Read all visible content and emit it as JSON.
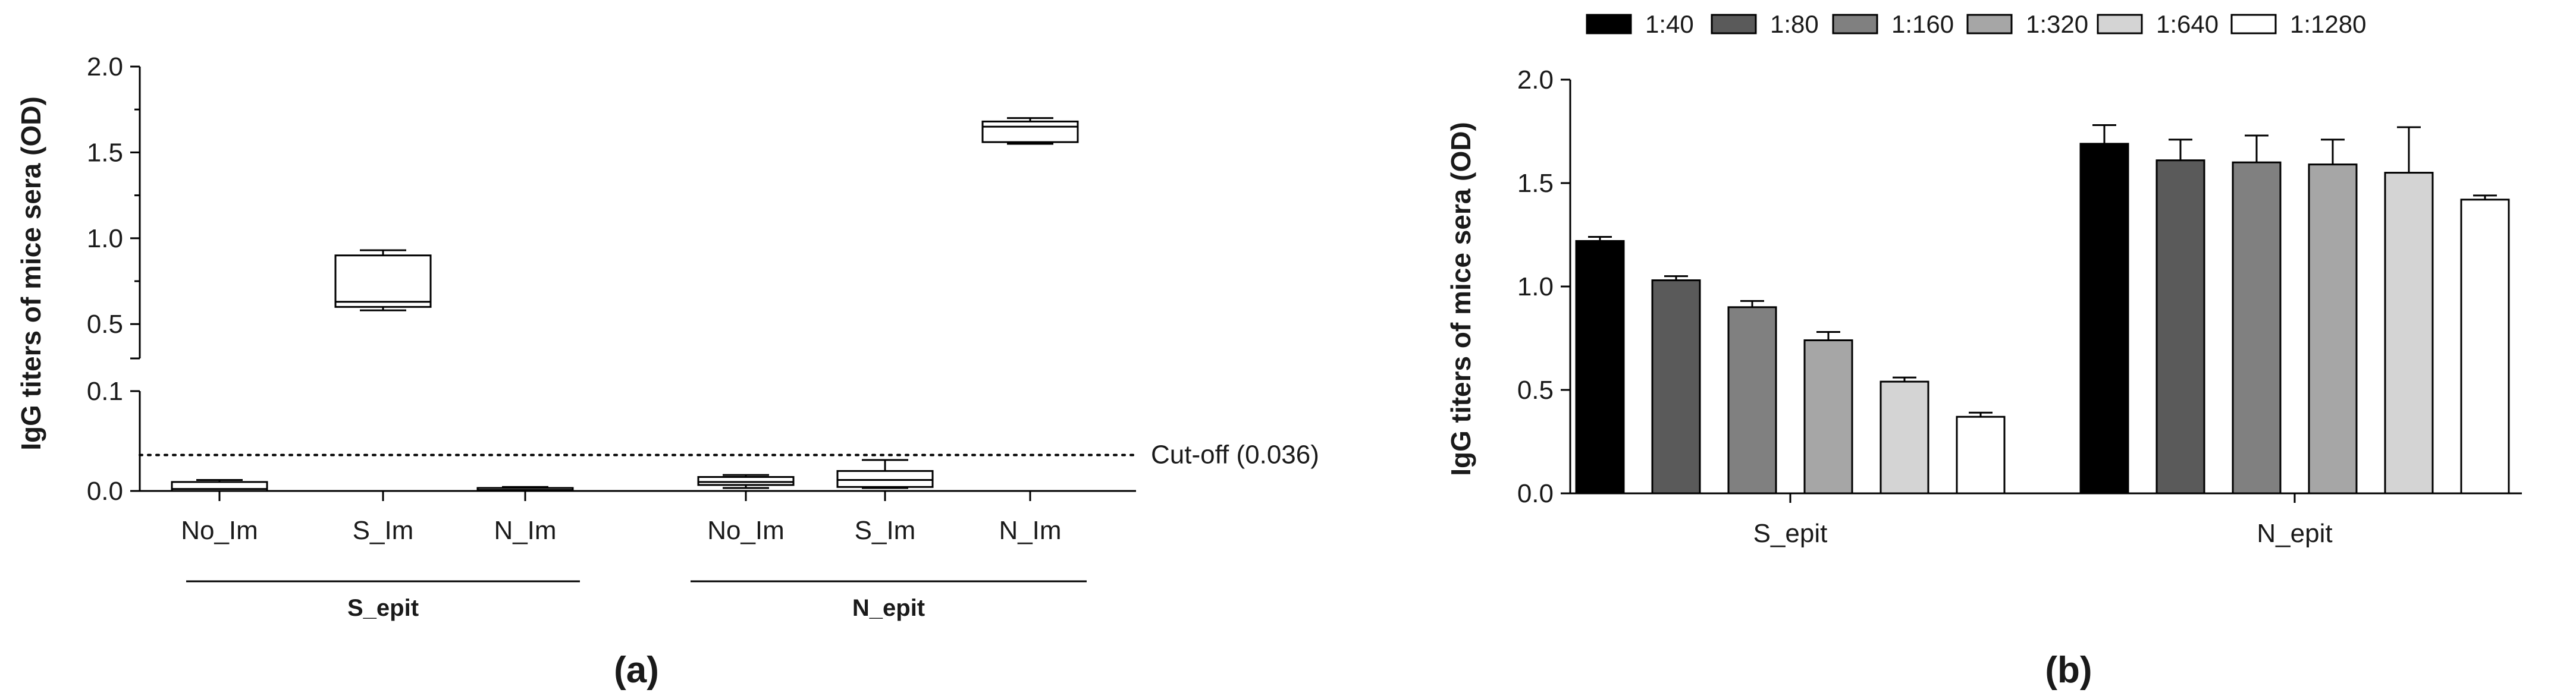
{
  "panel_a": {
    "label": "(a)"
  },
  "panel_b": {
    "label": "(b)"
  },
  "chart_data": [
    {
      "type": "box",
      "ylabel": "IgG titers of mice sera (OD)",
      "y_axis": {
        "broken": true,
        "lower_segment": {
          "range": [
            0,
            0.1
          ],
          "ticks": [
            "0.0",
            "0.1"
          ]
        },
        "upper_segment": {
          "range": [
            0.3,
            2.0
          ],
          "ticks": [
            "0.5",
            "1.0",
            "1.5",
            "2.0"
          ]
        }
      },
      "categories": [
        "No_Im",
        "S_Im",
        "N_Im",
        "No_Im",
        "S_Im",
        "N_Im"
      ],
      "groups": [
        {
          "name": "S_epit",
          "members": [
            0,
            1,
            2
          ]
        },
        {
          "name": "N_epit",
          "members": [
            3,
            4,
            5
          ]
        }
      ],
      "boxes": [
        {
          "min": 0.0,
          "q1": 0.0,
          "median": 0.002,
          "q3": 0.009,
          "max": 0.011
        },
        {
          "min": 0.58,
          "q1": 0.6,
          "median": 0.63,
          "q3": 0.9,
          "max": 0.93
        },
        {
          "min": 0.0,
          "q1": 0.0,
          "median": 0.001,
          "q3": 0.003,
          "max": 0.004
        },
        {
          "min": 0.003,
          "q1": 0.006,
          "median": 0.009,
          "q3": 0.014,
          "max": 0.016
        },
        {
          "min": 0.003,
          "q1": 0.004,
          "median": 0.011,
          "q3": 0.02,
          "max": 0.031
        },
        {
          "min": 1.55,
          "q1": 1.56,
          "median": 1.65,
          "q3": 1.68,
          "max": 1.7
        }
      ],
      "reference_line": {
        "value": 0.036,
        "label": "Cut-off (0.036)",
        "style": "dotted"
      },
      "grid": false
    },
    {
      "type": "bar",
      "ylabel": "IgG titers of mice sera (OD)",
      "ylim": [
        0,
        2.0
      ],
      "yticks": [
        "0.0",
        "0.5",
        "1.0",
        "1.5",
        "2.0"
      ],
      "categories": [
        "S_epit",
        "N_epit"
      ],
      "series": [
        {
          "name": "1:40",
          "color": "#000000",
          "values": [
            1.22,
            1.69
          ],
          "errors": [
            0.02,
            0.09
          ]
        },
        {
          "name": "1:80",
          "color": "#5a5a5a",
          "values": [
            1.03,
            1.61
          ],
          "errors": [
            0.02,
            0.1
          ]
        },
        {
          "name": "1:160",
          "color": "#808080",
          "values": [
            0.9,
            1.6
          ],
          "errors": [
            0.03,
            0.13
          ]
        },
        {
          "name": "1:320",
          "color": "#a6a6a6",
          "values": [
            0.74,
            1.59
          ],
          "errors": [
            0.04,
            0.12
          ]
        },
        {
          "name": "1:640",
          "color": "#d4d4d4",
          "values": [
            0.54,
            1.55
          ],
          "errors": [
            0.02,
            0.22
          ]
        },
        {
          "name": "1:1280",
          "color": "#ffffff",
          "values": [
            0.37,
            1.42
          ],
          "errors": [
            0.02,
            0.02
          ]
        }
      ],
      "legend_position": "top",
      "error_bars": true,
      "grid": false
    }
  ]
}
